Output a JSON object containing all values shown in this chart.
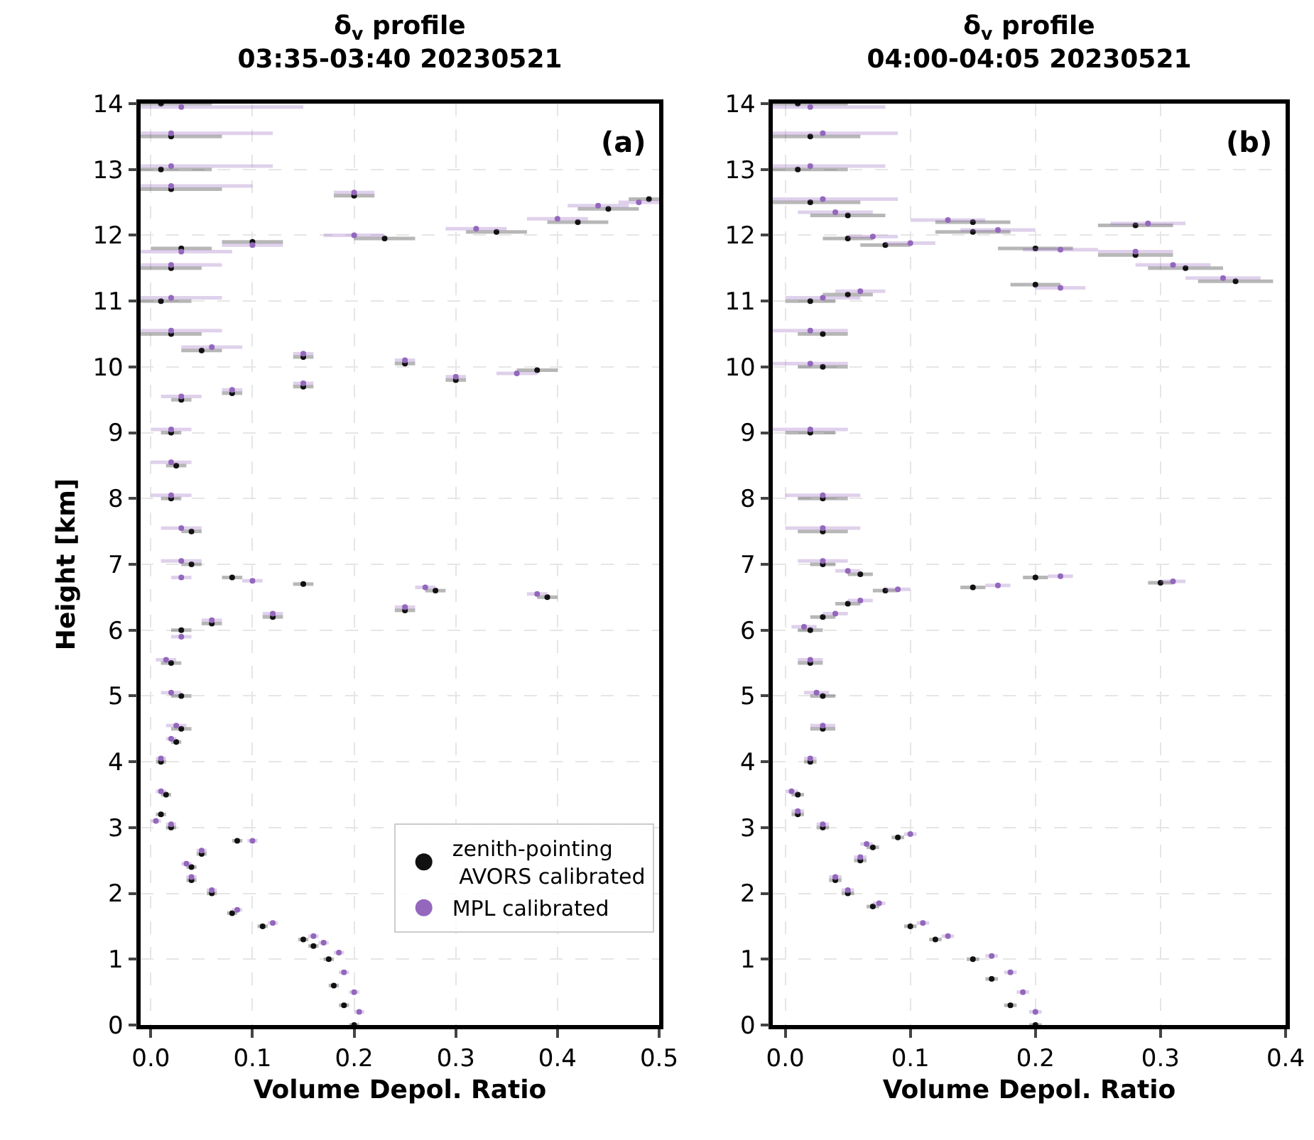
{
  "chart_data": [
    {
      "type": "scatter",
      "title": "δ$_{v}$ profile\n03:35-03:40 20230521",
      "xlabel": "Volume Depol. Ratio",
      "ylabel": "Height [km]",
      "annotations": [
        "(a)"
      ],
      "xlim": [
        -0.01,
        0.5
      ],
      "xticks": [
        {
          "value": 0,
          "label": "0.0"
        },
        0.1,
        0.2,
        0.3,
        0.4,
        0.5
      ],
      "ylim": [
        0,
        14
      ],
      "yticks": [
        0,
        1,
        2,
        3,
        4,
        5,
        6,
        7,
        8,
        9,
        10,
        11,
        12,
        13,
        14
      ],
      "grid": true,
      "legend": "bottom right",
      "marker": "circle",
      "series": [
        {
          "name": "zenith-pointing\n AVORS calibrated",
          "color": "#111111",
          "x": [
            0.2,
            0.19,
            0.18,
            0.175,
            0.16,
            0.15,
            0.11,
            0.08,
            0.06,
            0.04,
            0.04,
            0.05,
            0.085,
            0.02,
            0.01,
            0.015,
            0.01,
            0.025,
            0.03,
            0.03,
            0.02,
            0.03,
            0.06,
            0.12,
            0.25,
            0.39,
            0.28,
            0.15,
            0.08,
            0.04,
            0.04,
            0.02,
            0.025,
            0.02,
            0.03,
            0.08,
            0.15,
            0.3,
            0.38,
            0.25,
            0.15,
            0.05,
            0.02,
            0.01,
            0.02,
            0.03,
            0.1,
            0.23,
            0.34,
            0.42,
            0.45,
            0.49,
            0.2,
            0.02,
            0.01,
            0.02,
            0.01
          ],
          "values": [
            0.0,
            0.3,
            0.6,
            1.0,
            1.2,
            1.3,
            1.5,
            1.7,
            2.0,
            2.2,
            2.4,
            2.6,
            2.8,
            3.0,
            3.2,
            3.5,
            4.0,
            4.3,
            4.5,
            5.0,
            5.5,
            6.0,
            6.1,
            6.2,
            6.3,
            6.5,
            6.6,
            6.7,
            6.8,
            7.0,
            7.5,
            8.0,
            8.5,
            9.0,
            9.5,
            9.6,
            9.7,
            9.8,
            9.95,
            10.05,
            10.15,
            10.25,
            10.5,
            11.0,
            11.5,
            11.8,
            11.9,
            11.95,
            12.05,
            12.2,
            12.4,
            12.55,
            12.6,
            12.7,
            13.0,
            13.5,
            14.0
          ],
          "xerrors": [
            0.005,
            0.005,
            0.005,
            0.005,
            0.005,
            0.005,
            0.005,
            0.005,
            0.005,
            0.005,
            0.005,
            0.005,
            0.005,
            0.005,
            0.005,
            0.005,
            0.005,
            0.005,
            0.01,
            0.01,
            0.01,
            0.01,
            0.01,
            0.01,
            0.01,
            0.01,
            0.01,
            0.01,
            0.01,
            0.01,
            0.01,
            0.01,
            0.01,
            0.01,
            0.01,
            0.01,
            0.01,
            0.01,
            0.02,
            0.01,
            0.01,
            0.02,
            0.03,
            0.03,
            0.03,
            0.03,
            0.03,
            0.03,
            0.03,
            0.03,
            0.03,
            0.02,
            0.02,
            0.05,
            0.05,
            0.05,
            0.05
          ]
        },
        {
          "name": "MPL calibrated",
          "color": "#9467bd",
          "x": [
            0.205,
            0.2,
            0.19,
            0.185,
            0.17,
            0.16,
            0.12,
            0.085,
            0.06,
            0.04,
            0.035,
            0.05,
            0.1,
            0.02,
            0.005,
            0.01,
            0.01,
            0.02,
            0.025,
            0.02,
            0.015,
            0.03,
            0.06,
            0.12,
            0.25,
            0.38,
            0.27,
            0.1,
            0.03,
            0.03,
            0.03,
            0.02,
            0.02,
            0.02,
            0.03,
            0.08,
            0.15,
            0.3,
            0.36,
            0.25,
            0.15,
            0.06,
            0.02,
            0.02,
            0.02,
            0.03,
            0.1,
            0.2,
            0.32,
            0.4,
            0.44,
            0.48,
            0.2,
            0.02,
            0.02,
            0.02,
            0.03
          ],
          "values": [
            0.2,
            0.5,
            0.8,
            1.1,
            1.25,
            1.35,
            1.55,
            1.75,
            2.05,
            2.25,
            2.45,
            2.65,
            2.8,
            3.05,
            3.1,
            3.55,
            4.05,
            4.35,
            4.55,
            5.05,
            5.55,
            5.9,
            6.15,
            6.25,
            6.35,
            6.55,
            6.65,
            6.75,
            6.8,
            7.05,
            7.55,
            8.05,
            8.55,
            9.05,
            9.55,
            9.65,
            9.75,
            9.85,
            9.9,
            10.1,
            10.2,
            10.3,
            10.55,
            11.05,
            11.55,
            11.75,
            11.85,
            12.0,
            12.1,
            12.25,
            12.45,
            12.5,
            12.65,
            12.75,
            13.05,
            13.55,
            13.95
          ],
          "xerrors": [
            0.005,
            0.005,
            0.005,
            0.005,
            0.005,
            0.005,
            0.005,
            0.005,
            0.005,
            0.005,
            0.005,
            0.005,
            0.005,
            0.005,
            0.005,
            0.005,
            0.005,
            0.005,
            0.01,
            0.01,
            0.01,
            0.01,
            0.01,
            0.01,
            0.01,
            0.01,
            0.01,
            0.01,
            0.01,
            0.02,
            0.02,
            0.02,
            0.02,
            0.02,
            0.02,
            0.01,
            0.01,
            0.01,
            0.02,
            0.01,
            0.01,
            0.03,
            0.05,
            0.05,
            0.05,
            0.05,
            0.03,
            0.03,
            0.03,
            0.03,
            0.03,
            0.02,
            0.02,
            0.08,
            0.1,
            0.1,
            0.12
          ]
        }
      ]
    },
    {
      "type": "scatter",
      "title": "δ$_{v}$ profile\n04:00-04:05 20230521",
      "xlabel": "Volume Depol. Ratio",
      "annotations": [
        "(b)"
      ],
      "xlim": [
        -0.01,
        0.4
      ],
      "xticks": [
        {
          "value": 0,
          "label": "0.0"
        },
        0.1,
        0.2,
        0.3,
        0.4
      ],
      "ylim": [
        0,
        14
      ],
      "yticks": [
        0,
        1,
        2,
        3,
        4,
        5,
        6,
        7,
        8,
        9,
        10,
        11,
        12,
        13,
        14
      ],
      "grid": true,
      "marker": "circle",
      "series": [
        {
          "color": "#111111",
          "x": [
            0.2,
            0.18,
            0.165,
            0.15,
            0.12,
            0.1,
            0.07,
            0.05,
            0.04,
            0.06,
            0.07,
            0.09,
            0.03,
            0.01,
            0.01,
            0.02,
            0.03,
            0.03,
            0.02,
            0.02,
            0.03,
            0.05,
            0.08,
            0.15,
            0.3,
            0.2,
            0.06,
            0.03,
            0.03,
            0.03,
            0.02,
            0.03,
            0.03,
            0.02,
            0.05,
            0.2,
            0.36,
            0.32,
            0.28,
            0.2,
            0.08,
            0.05,
            0.15,
            0.28,
            0.15,
            0.05,
            0.02,
            0.01,
            0.02,
            0.01
          ],
          "values": [
            0.0,
            0.3,
            0.7,
            1.0,
            1.3,
            1.5,
            1.8,
            2.0,
            2.2,
            2.5,
            2.7,
            2.85,
            3.0,
            3.2,
            3.5,
            4.0,
            4.5,
            5.0,
            5.5,
            6.0,
            6.2,
            6.4,
            6.6,
            6.65,
            6.72,
            6.8,
            6.85,
            7.0,
            7.5,
            8.0,
            9.0,
            10.0,
            10.5,
            11.0,
            11.1,
            11.25,
            11.3,
            11.5,
            11.7,
            11.8,
            11.85,
            11.95,
            12.05,
            12.15,
            12.2,
            12.3,
            12.5,
            13.0,
            13.5,
            14.0
          ],
          "xerrors": [
            0.005,
            0.005,
            0.005,
            0.005,
            0.005,
            0.005,
            0.005,
            0.005,
            0.005,
            0.005,
            0.005,
            0.005,
            0.005,
            0.005,
            0.005,
            0.005,
            0.01,
            0.01,
            0.01,
            0.01,
            0.01,
            0.01,
            0.01,
            0.01,
            0.01,
            0.01,
            0.01,
            0.01,
            0.02,
            0.02,
            0.02,
            0.02,
            0.02,
            0.02,
            0.02,
            0.02,
            0.03,
            0.03,
            0.03,
            0.03,
            0.02,
            0.02,
            0.03,
            0.03,
            0.03,
            0.03,
            0.04,
            0.04,
            0.04,
            0.04
          ]
        },
        {
          "color": "#9467bd",
          "x": [
            0.2,
            0.19,
            0.18,
            0.165,
            0.13,
            0.11,
            0.075,
            0.05,
            0.04,
            0.06,
            0.065,
            0.1,
            0.03,
            0.01,
            0.005,
            0.02,
            0.03,
            0.025,
            0.02,
            0.015,
            0.04,
            0.06,
            0.09,
            0.17,
            0.31,
            0.22,
            0.05,
            0.03,
            0.03,
            0.03,
            0.02,
            0.02,
            0.02,
            0.03,
            0.06,
            0.22,
            0.35,
            0.31,
            0.28,
            0.22,
            0.1,
            0.07,
            0.17,
            0.29,
            0.13,
            0.04,
            0.03,
            0.02,
            0.03,
            0.02
          ],
          "values": [
            0.2,
            0.5,
            0.8,
            1.05,
            1.35,
            1.55,
            1.85,
            2.05,
            2.25,
            2.55,
            2.75,
            2.9,
            3.05,
            3.25,
            3.55,
            4.05,
            4.55,
            5.05,
            5.55,
            6.05,
            6.25,
            6.45,
            6.62,
            6.68,
            6.74,
            6.82,
            6.9,
            7.05,
            7.55,
            8.05,
            9.05,
            10.05,
            10.55,
            11.05,
            11.15,
            11.2,
            11.35,
            11.55,
            11.75,
            11.78,
            11.88,
            11.98,
            12.08,
            12.18,
            12.23,
            12.35,
            12.55,
            13.05,
            13.55,
            13.95
          ],
          "xerrors": [
            0.005,
            0.005,
            0.005,
            0.005,
            0.005,
            0.005,
            0.005,
            0.005,
            0.005,
            0.005,
            0.005,
            0.005,
            0.005,
            0.005,
            0.005,
            0.005,
            0.01,
            0.01,
            0.01,
            0.01,
            0.01,
            0.01,
            0.01,
            0.01,
            0.01,
            0.01,
            0.01,
            0.02,
            0.03,
            0.03,
            0.03,
            0.03,
            0.03,
            0.03,
            0.02,
            0.02,
            0.03,
            0.03,
            0.03,
            0.03,
            0.02,
            0.02,
            0.03,
            0.03,
            0.03,
            0.03,
            0.06,
            0.06,
            0.06,
            0.06
          ]
        }
      ]
    }
  ]
}
